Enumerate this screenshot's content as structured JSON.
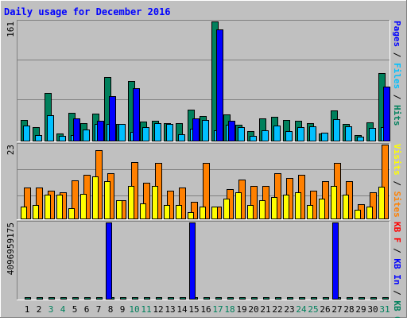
{
  "chart_data": [
    {
      "type": "bar",
      "title": "Daily usage for December 2016",
      "categories": [
        "1",
        "2",
        "3",
        "4",
        "5",
        "6",
        "7",
        "8",
        "9",
        "10",
        "11",
        "12",
        "13",
        "14",
        "15",
        "16",
        "17",
        "18",
        "19",
        "20",
        "21",
        "22",
        "23",
        "24",
        "25",
        "26",
        "27",
        "28",
        "29",
        "30",
        "31"
      ],
      "weekend_days": [
        "3",
        "4",
        "10",
        "11",
        "17",
        "18",
        "24",
        "25",
        "31"
      ],
      "ylim": [
        0,
        161
      ],
      "y_tick_label": "161",
      "axis_label_parts": [
        {
          "text": "Pages",
          "color": "#0000ff"
        },
        {
          "text": " / ",
          "color": "#000000"
        },
        {
          "text": "Files",
          "color": "#00c0ff"
        },
        {
          "text": " / ",
          "color": "#000000"
        },
        {
          "text": "Hits",
          "color": "#00805c"
        }
      ],
      "series": [
        {
          "name": "Hits",
          "color": "#00805c",
          "values": [
            28,
            18,
            64,
            10,
            38,
            24,
            36,
            86,
            23,
            80,
            26,
            27,
            24,
            24,
            42,
            33,
            161,
            35,
            22,
            13,
            30,
            32,
            28,
            27,
            24,
            10,
            41,
            23,
            8,
            25,
            91
          ]
        },
        {
          "name": "Files",
          "color": "#00c0ff",
          "values": [
            20,
            7,
            34,
            6,
            7,
            15,
            23,
            23,
            23,
            12,
            18,
            24,
            23,
            9,
            16,
            28,
            14,
            22,
            18,
            6,
            14,
            20,
            13,
            18,
            19,
            11,
            29,
            19,
            5,
            17,
            18
          ]
        },
        {
          "name": "Pages",
          "color": "#0000ff",
          "values": [
            0,
            0,
            0,
            0,
            30,
            0,
            27,
            60,
            0,
            71,
            0,
            0,
            0,
            0,
            30,
            0,
            150,
            27,
            0,
            0,
            0,
            0,
            0,
            0,
            0,
            0,
            0,
            0,
            0,
            0,
            73
          ]
        }
      ]
    },
    {
      "type": "bar",
      "ylim": [
        0,
        23
      ],
      "y_tick_label": "23",
      "axis_label_parts": [
        {
          "text": "Visits",
          "color": "#ffff00"
        },
        {
          "text": " / ",
          "color": "#000000"
        },
        {
          "text": "Sites",
          "color": "#ff8000"
        }
      ],
      "series": [
        {
          "name": "Sites",
          "color": "#ff8000",
          "values": [
            9.7,
            9.7,
            8.7,
            8.2,
            11.8,
            13.6,
            21.3,
            14.0,
            5.8,
            17.5,
            11.2,
            17.2,
            8.7,
            9.7,
            5.2,
            17.4,
            3.8,
            9.2,
            12.1,
            10.2,
            10.2,
            14.0,
            12.6,
            13.6,
            8.7,
            11.7,
            17.4,
            11.7,
            4.5,
            8.2,
            23.0
          ]
        },
        {
          "name": "Visits",
          "color": "#ffff00",
          "values": [
            3.7,
            4.2,
            7.3,
            7.3,
            3.1,
            7.6,
            13.0,
            11.7,
            5.8,
            10.2,
            4.7,
            10.2,
            4.2,
            4.2,
            2.1,
            3.8,
            3.8,
            6.2,
            8.2,
            4.2,
            5.8,
            6.6,
            7.3,
            8.2,
            4.2,
            6.2,
            10.2,
            7.3,
            2.6,
            3.7,
            9.9
          ]
        }
      ]
    },
    {
      "type": "bar",
      "ylim": [
        0,
        4096959175
      ],
      "y_tick_label": "4096959175",
      "axis_label_parts": [
        {
          "text": "KB F",
          "color": "#ff0000"
        },
        {
          "text": " / ",
          "color": "#000000"
        },
        {
          "text": "KB In",
          "color": "#0000ff"
        },
        {
          "text": " / ",
          "color": "#000000"
        },
        {
          "text": "KB Out",
          "color": "#00805c"
        }
      ],
      "series": [
        {
          "name": "KB F",
          "color": "#ff0000",
          "values": [
            0,
            0,
            0,
            0,
            0,
            0,
            0,
            0,
            0,
            0,
            0,
            0,
            0,
            0,
            0,
            0,
            0,
            0,
            0,
            0,
            0,
            0,
            0,
            0,
            0,
            0,
            0,
            0,
            0,
            0,
            0
          ]
        },
        {
          "name": "KB In",
          "color": "#0000ff",
          "values": [
            0,
            0,
            0,
            0,
            0,
            0,
            0,
            4096959175,
            0,
            0,
            0,
            0,
            0,
            0,
            4096959175,
            0,
            0,
            0,
            0,
            0,
            0,
            0,
            0,
            0,
            0,
            0,
            4096959175,
            0,
            0,
            0,
            0
          ]
        },
        {
          "name": "KB Out",
          "color": "#00805c",
          "values": [
            18000000,
            18000000,
            18000000,
            18000000,
            18000000,
            18000000,
            18000000,
            18000000,
            18000000,
            18000000,
            18000000,
            18000000,
            18000000,
            18000000,
            18000000,
            18000000,
            18000000,
            18000000,
            18000000,
            18000000,
            18000000,
            18000000,
            18000000,
            18000000,
            18000000,
            18000000,
            18000000,
            18000000,
            18000000,
            18000000,
            18000000
          ]
        }
      ]
    }
  ],
  "colors": {
    "background": "#c0c0c0",
    "frame_dark": "#808080",
    "frame_light": "#ffffff",
    "title": "#0000ff",
    "weekday": "#000000",
    "weekend": "#00805c"
  }
}
